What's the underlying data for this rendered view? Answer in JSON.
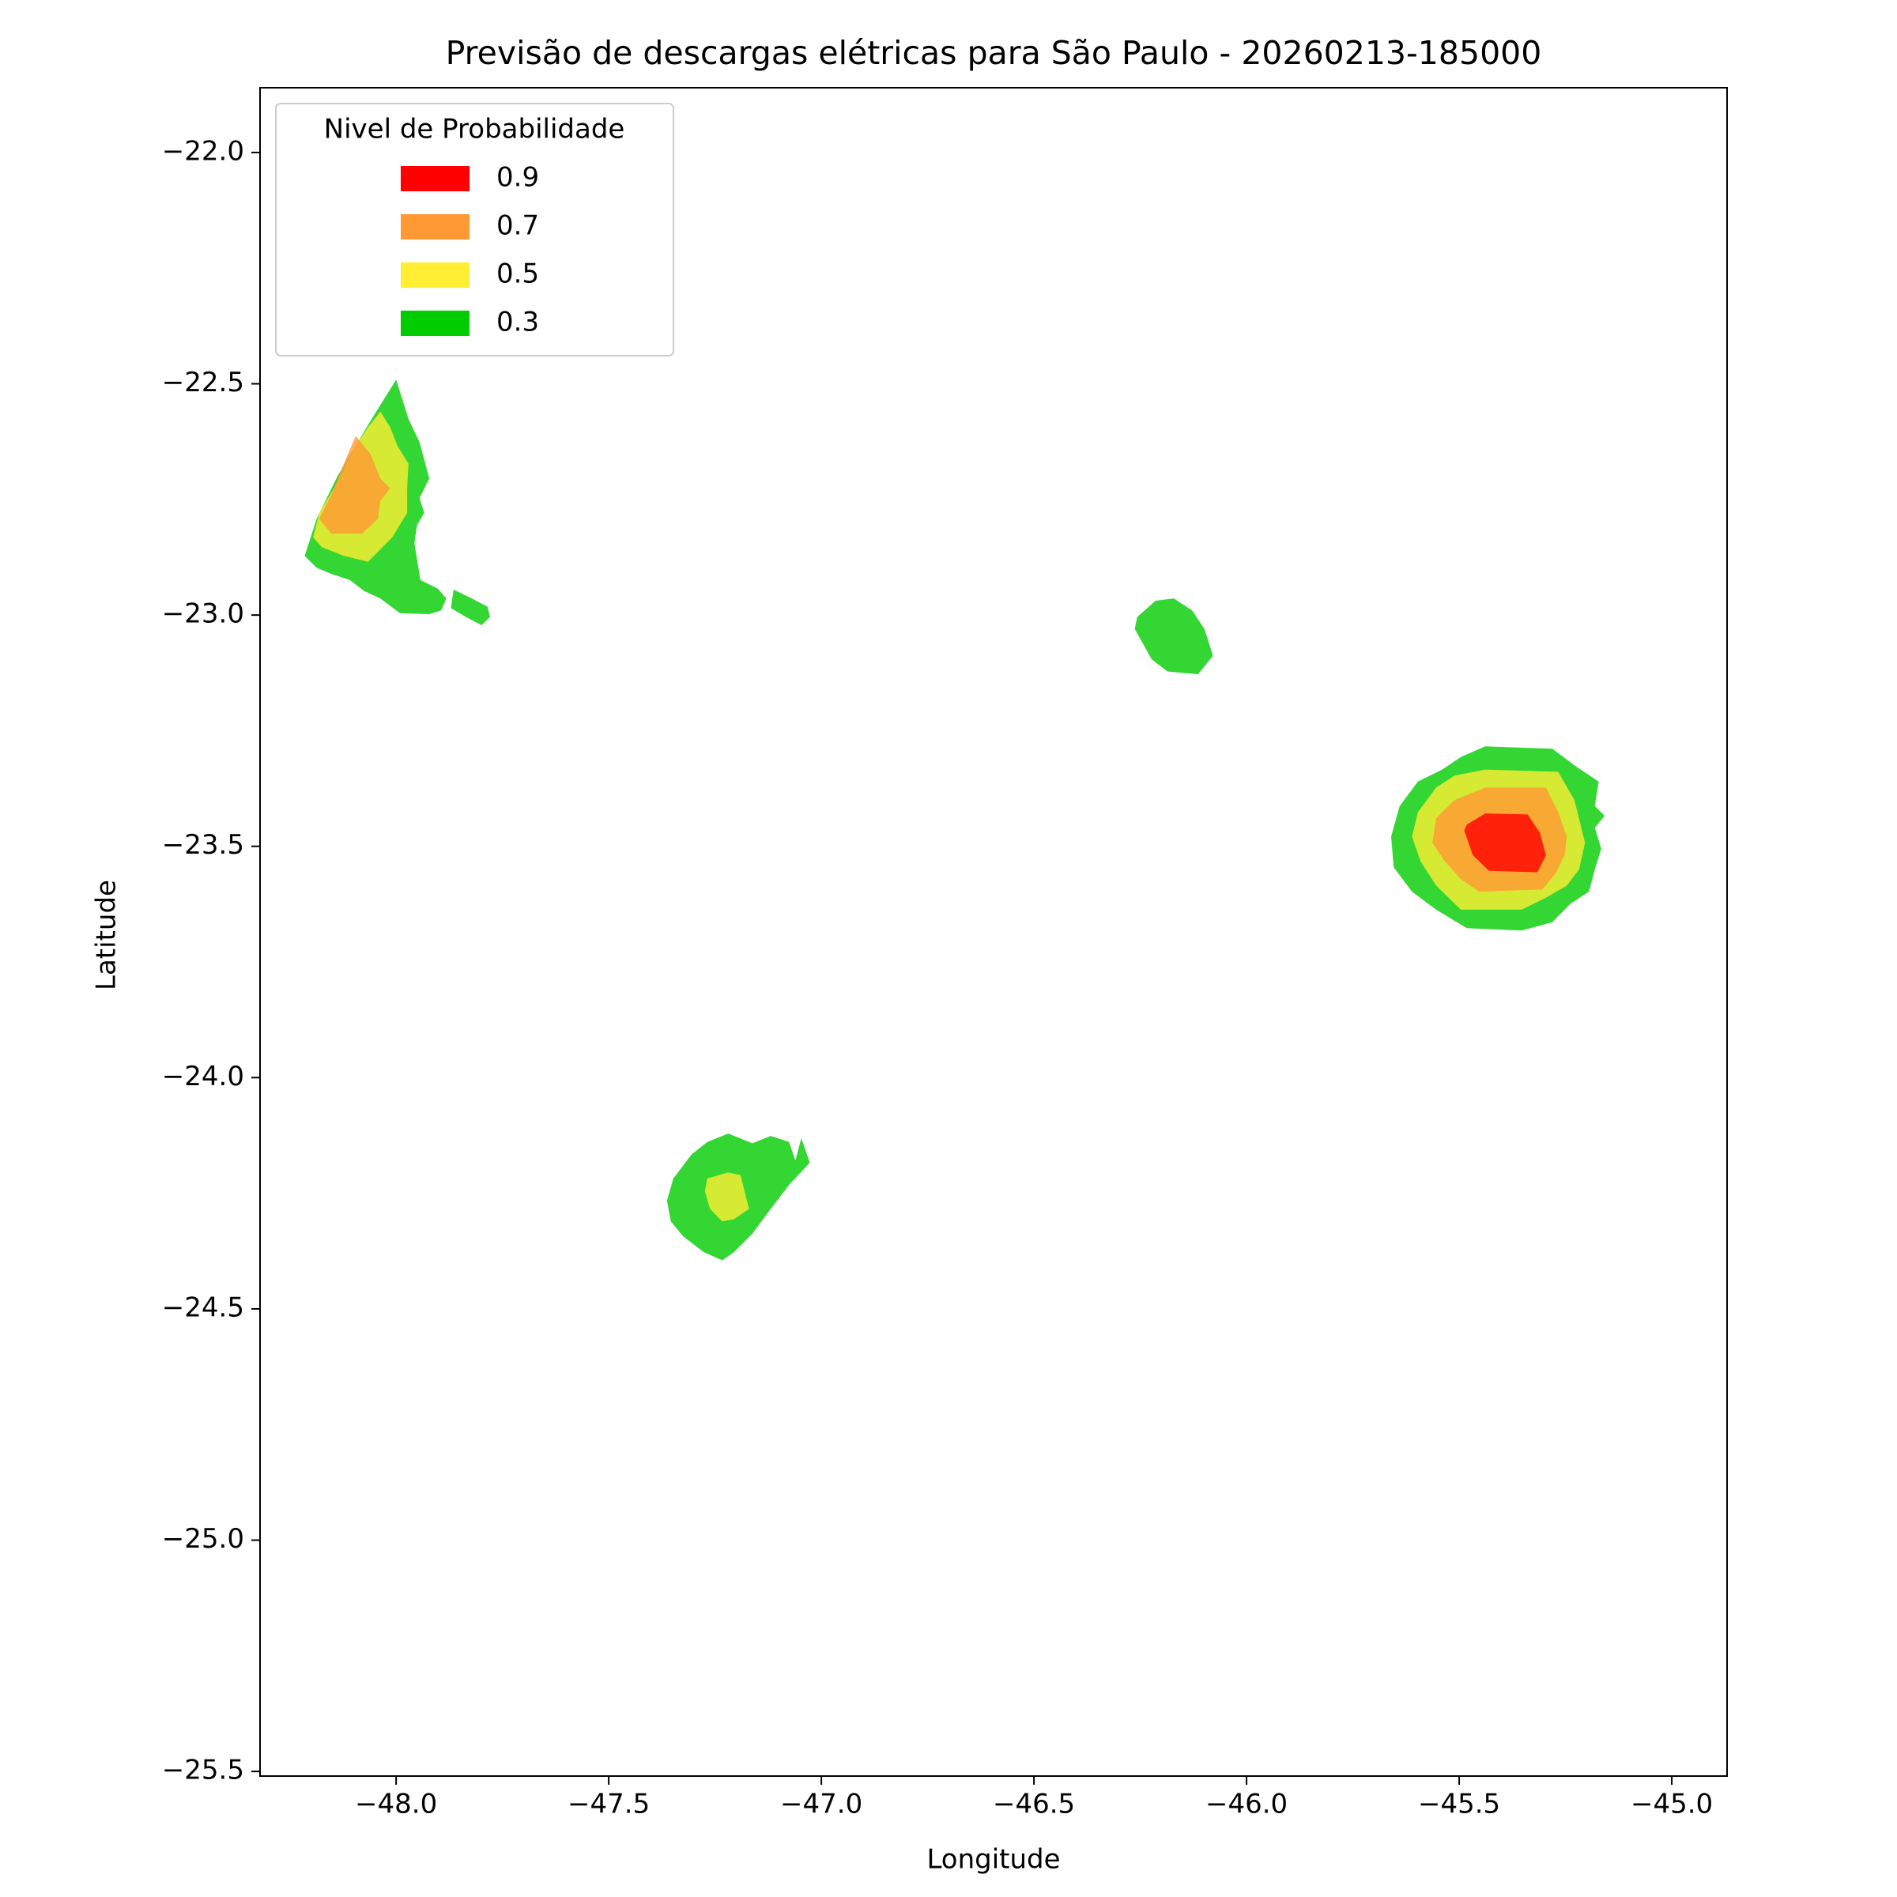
{
  "chart_data": {
    "type": "contourf",
    "title": "Previsão de descargas elétricas para São Paulo - 20260213-185000",
    "x_label": "Longitude",
    "y_label": "Latitude",
    "legend_title": "Nivel de Probabilidade",
    "legend": "upper left",
    "alpha": 0.8,
    "xlim": [
      -48.32,
      -44.87
    ],
    "ylim": [
      -25.51,
      -21.86
    ],
    "xticks": [
      {
        "value": -48.0,
        "label": "−48.0"
      },
      {
        "value": -47.5,
        "label": "−47.5"
      },
      {
        "value": -47.0,
        "label": "−47.0"
      },
      {
        "value": -46.5,
        "label": "−46.5"
      },
      {
        "value": -46.0,
        "label": "−46.0"
      },
      {
        "value": -45.5,
        "label": "−45.5"
      },
      {
        "value": -45.0,
        "label": "−45.0"
      }
    ],
    "yticks": [
      {
        "value": -22.0,
        "label": "−22.0"
      },
      {
        "value": -22.5,
        "label": "−22.5"
      },
      {
        "value": -23.0,
        "label": "−23.0"
      },
      {
        "value": -23.5,
        "label": "−23.5"
      },
      {
        "value": -24.0,
        "label": "−24.0"
      },
      {
        "value": -24.5,
        "label": "−24.5"
      },
      {
        "value": -25.0,
        "label": "−25.0"
      },
      {
        "value": -25.5,
        "label": "−25.5"
      }
    ],
    "series": [
      {
        "name": "0.9",
        "color": "#ff0000",
        "polygons": [
          {
            "x": [
              -45.482,
              -45.439,
              -45.339,
              -45.31,
              -45.296,
              -45.316,
              -45.43,
              -45.468,
              -45.488
            ],
            "y": [
              -23.453,
              -23.429,
              -23.431,
              -23.471,
              -23.519,
              -23.556,
              -23.553,
              -23.519,
              -23.466
            ]
          }
        ]
      },
      {
        "name": "0.7",
        "color": "#ff9933",
        "polygons": [
          {
            "x": [
              -48.095,
              -48.06,
              -48.037,
              -48.014,
              -48.037,
              -48.043,
              -48.08,
              -48.152,
              -48.181,
              -48.152,
              -48.123
            ],
            "y": [
              -22.613,
              -22.652,
              -22.705,
              -22.726,
              -22.753,
              -22.792,
              -22.824,
              -22.824,
              -22.792,
              -22.739,
              -22.673
            ]
          },
          {
            "x": [
              -45.554,
              -45.511,
              -45.439,
              -45.296,
              -45.267,
              -45.247,
              -45.252,
              -45.273,
              -45.304,
              -45.453,
              -45.496,
              -45.534,
              -45.563
            ],
            "y": [
              -23.439,
              -23.4,
              -23.373,
              -23.373,
              -23.426,
              -23.479,
              -23.519,
              -23.558,
              -23.593,
              -23.598,
              -23.571,
              -23.532,
              -23.492
            ]
          }
        ]
      },
      {
        "name": "0.5",
        "color": "#ffee33",
        "polygons": [
          {
            "x": [
              -48.037,
              -48.014,
              -47.997,
              -47.971,
              -47.974,
              -47.974,
              -48.009,
              -48.066,
              -48.123,
              -48.175,
              -48.195,
              -48.181,
              -48.138,
              -48.095,
              -48.066
            ],
            "y": [
              -22.56,
              -22.594,
              -22.634,
              -22.673,
              -22.726,
              -22.779,
              -22.832,
              -22.885,
              -22.872,
              -22.853,
              -22.832,
              -22.779,
              -22.713,
              -22.634,
              -22.594
            ]
          },
          {
            "x": [
              -45.597,
              -45.554,
              -45.511,
              -45.439,
              -45.267,
              -45.229,
              -45.204,
              -45.218,
              -45.247,
              -45.296,
              -45.353,
              -45.496,
              -45.554,
              -45.591,
              -45.611
            ],
            "y": [
              -23.426,
              -23.373,
              -23.347,
              -23.334,
              -23.339,
              -23.4,
              -23.492,
              -23.55,
              -23.585,
              -23.611,
              -23.637,
              -23.637,
              -23.585,
              -23.532,
              -23.479
            ]
          },
          {
            "x": [
              -47.268,
              -47.219,
              -47.19,
              -47.17,
              -47.205,
              -47.233,
              -47.262,
              -47.274
            ],
            "y": [
              -24.218,
              -24.205,
              -24.211,
              -24.284,
              -24.306,
              -24.311,
              -24.284,
              -24.245
            ]
          }
        ]
      },
      {
        "name": "0.3",
        "color": "#00cc00",
        "polygons": [
          {
            "x": [
              -48.0,
              -47.971,
              -47.945,
              -47.922,
              -47.945,
              -47.934,
              -47.951,
              -47.957,
              -47.943,
              -47.902,
              -47.882,
              -47.894,
              -47.922,
              -47.991,
              -48.037,
              -48.075,
              -48.109,
              -48.152,
              -48.187,
              -48.215,
              -48.187,
              -48.138,
              -48.095,
              -48.052
            ],
            "y": [
              -22.491,
              -22.576,
              -22.626,
              -22.705,
              -22.747,
              -22.779,
              -22.806,
              -22.845,
              -22.924,
              -22.943,
              -22.964,
              -22.99,
              -22.998,
              -22.996,
              -22.964,
              -22.948,
              -22.924,
              -22.911,
              -22.898,
              -22.872,
              -22.792,
              -22.7,
              -22.634,
              -22.568
            ]
          },
          {
            "x": [
              -47.865,
              -47.822,
              -47.785,
              -47.779,
              -47.799,
              -47.836,
              -47.871
            ],
            "y": [
              -22.945,
              -22.964,
              -22.982,
              -23.004,
              -23.022,
              -23.004,
              -22.985
            ]
          },
          {
            "x": [
              -46.257,
              -46.214,
              -46.171,
              -46.128,
              -46.099,
              -46.079,
              -46.114,
              -46.186,
              -46.223,
              -46.263
            ],
            "y": [
              -23.004,
              -22.969,
              -22.964,
              -22.99,
              -23.03,
              -23.088,
              -23.128,
              -23.122,
              -23.096,
              -23.03
            ]
          },
          {
            "x": [
              -45.64,
              -45.597,
              -45.54,
              -45.496,
              -45.439,
              -45.281,
              -45.224,
              -45.172,
              -45.181,
              -45.158,
              -45.181,
              -45.166,
              -45.181,
              -45.195,
              -45.238,
              -45.281,
              -45.353,
              -45.482,
              -45.554,
              -45.611,
              -45.654,
              -45.66
            ],
            "y": [
              -23.413,
              -23.36,
              -23.334,
              -23.307,
              -23.284,
              -23.289,
              -23.328,
              -23.36,
              -23.413,
              -23.434,
              -23.46,
              -23.505,
              -23.55,
              -23.598,
              -23.624,
              -23.664,
              -23.682,
              -23.677,
              -23.637,
              -23.598,
              -23.545,
              -23.479
            ]
          },
          {
            "x": [
              -47.348,
              -47.305,
              -47.268,
              -47.219,
              -47.162,
              -47.119,
              -47.076,
              -47.061,
              -47.047,
              -47.027,
              -47.076,
              -47.119,
              -47.162,
              -47.205,
              -47.233,
              -47.277,
              -47.325,
              -47.354,
              -47.363
            ],
            "y": [
              -24.218,
              -24.166,
              -24.139,
              -24.121,
              -24.142,
              -24.126,
              -24.139,
              -24.179,
              -24.131,
              -24.184,
              -24.232,
              -24.284,
              -24.337,
              -24.377,
              -24.395,
              -24.377,
              -24.343,
              -24.311,
              -24.266
            ]
          }
        ]
      }
    ]
  }
}
